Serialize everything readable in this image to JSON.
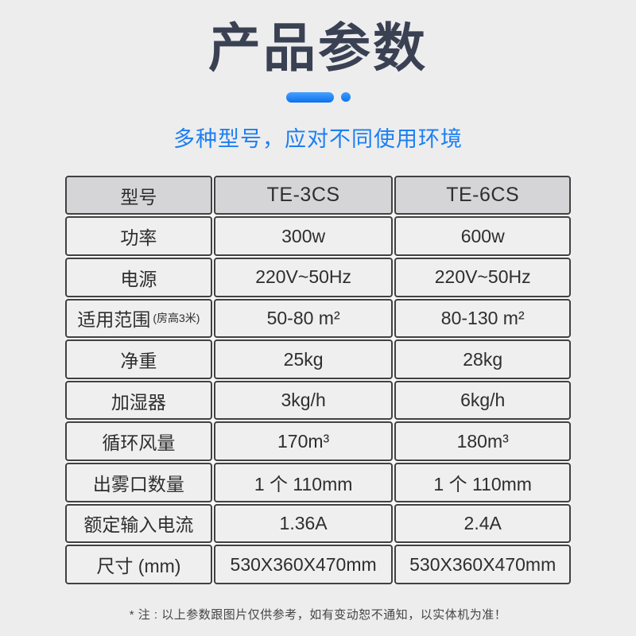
{
  "colors": {
    "accent_blue": "#1b7ff2",
    "title_dark": "#3a4153",
    "header_row_bg": "#d5d5d7",
    "cell_bg": "#efeff0",
    "border": "#414141",
    "page_bg": "#ededee"
  },
  "header": {
    "title": "产品参数",
    "subtitle": "多种型号，应对不同使用环境"
  },
  "table": {
    "columns": [
      "型号",
      "TE-3CS",
      "TE-6CS"
    ],
    "rows": [
      {
        "label": "功率",
        "te3cs": "300w",
        "te6cs": "600w"
      },
      {
        "label": "电源",
        "te3cs": "220V~50Hz",
        "te6cs": "220V~50Hz"
      },
      {
        "label": "适用范围",
        "label_sub": "(房高3米)",
        "te3cs": "50-80 m²",
        "te6cs": "80-130 m²"
      },
      {
        "label": "净重",
        "te3cs": "25kg",
        "te6cs": "28kg"
      },
      {
        "label": "加湿器",
        "te3cs": "3kg/h",
        "te6cs": "6kg/h"
      },
      {
        "label": "循环风量",
        "te3cs": "170m³",
        "te6cs": "180m³"
      },
      {
        "label": "出雾口数量",
        "te3cs": "1 个 110mm",
        "te6cs": "1 个 110mm"
      },
      {
        "label": "额定输入电流",
        "te3cs": "1.36A",
        "te6cs": "2.4A"
      },
      {
        "label": "尺寸 (mm)",
        "te3cs": "530X360X470mm",
        "te6cs": "530X360X470mm"
      }
    ]
  },
  "footer": {
    "note": "* 注 : 以上参数跟图片仅供参考，如有变动恕不通知，以实体机为准！"
  }
}
